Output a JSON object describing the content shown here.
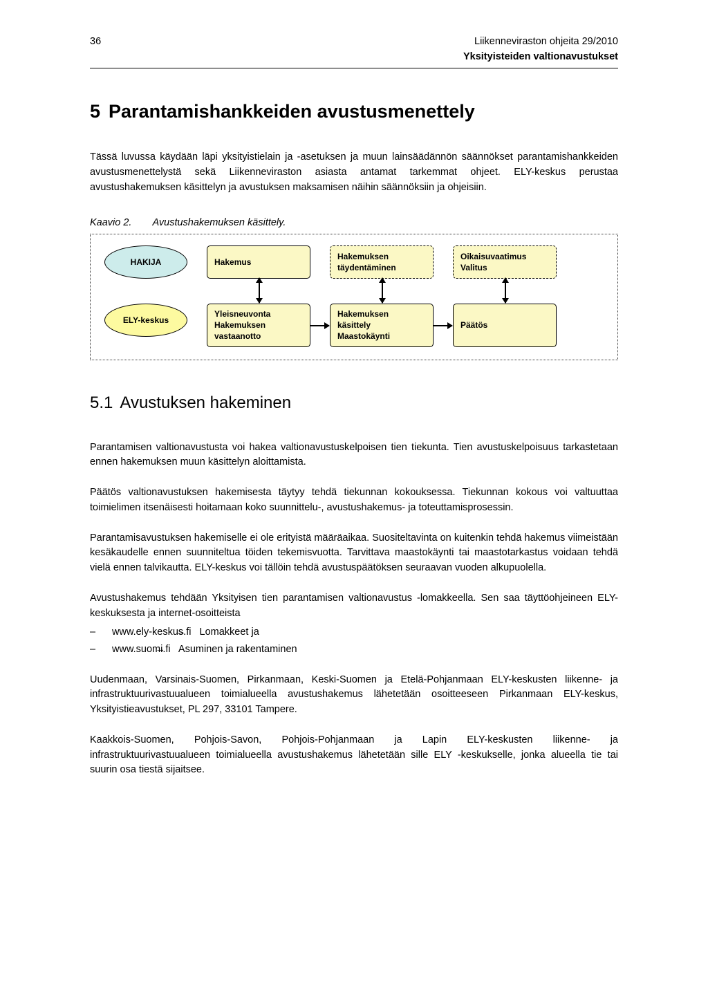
{
  "header": {
    "page_number": "36",
    "line1": "Liikenneviraston ohjeita 29/2010",
    "line2": "Yksityisteiden valtionavustukset"
  },
  "chapter": {
    "number": "5",
    "title": "Parantamishankkeiden avustusmenettely"
  },
  "intro_paragraph": "Tässä luvussa käydään läpi yksityistielain ja -asetuksen ja muun lainsäädännön säännökset parantamishankkeiden avustusmenettelystä sekä Liikenneviraston asiasta antamat tarkemmat ohjeet. ELY-keskus perustaa avustushakemuksen käsittelyn ja avustuksen maksamisen näihin säännöksiin ja ohjeisiin.",
  "diagram_caption": {
    "label": "Kaavio 2.",
    "text": "Avustushakemuksen käsittely."
  },
  "diagram": {
    "colors": {
      "ellipse_blue": "#cdeceb",
      "ellipse_yellow": "#fdfaa0",
      "rect_fill": "#fbf8c5",
      "border": "#000000",
      "container_border": "#333333"
    },
    "row1": {
      "actor": "HAKIJA",
      "box1": "Hakemus",
      "box2_line1": "Hakemuksen",
      "box2_line2": "täydentäminen",
      "box3_line1": "Oikaisuvaatimus",
      "box3_line2": "Valitus"
    },
    "row2": {
      "actor": "ELY-keskus",
      "box1_line1": "Yleisneuvonta",
      "box1_line2": "Hakemuksen",
      "box1_line3": "vastaanotto",
      "box2_line1": "Hakemuksen",
      "box2_line2": "käsittely",
      "box2_line3": "Maastokäynti",
      "box3": "Päätös"
    }
  },
  "section": {
    "number": "5.1",
    "title": "Avustuksen hakeminen"
  },
  "paragraphs": {
    "p1": "Parantamisen valtionavustusta voi hakea valtionavustuskelpoisen tien tiekunta. Tien avustuskelpoisuus tarkastetaan ennen hakemuksen muun käsittelyn aloittamista.",
    "p2": "Päätös valtionavustuksen hakemisesta täytyy tehdä tiekunnan kokouksessa. Tiekunnan kokous voi valtuuttaa toimielimen itsenäisesti hoitamaan koko suunnittelu-, avustushakemus- ja toteuttamisprosessin.",
    "p3": "Parantamisavustuksen hakemiselle ei ole erityistä määräaikaa. Suositeltavinta on kuitenkin tehdä hakemus viimeistään kesäkaudelle ennen suunniteltua töiden tekemisvuotta. Tarvittava maastokäynti tai maastotarkastus voidaan tehdä vielä ennen talvikautta. ELY-keskus voi tällöin tehdä avustuspäätöksen seuraavan vuoden alkupuolella.",
    "p4": "Avustushakemus tehdään Yksityisen tien parantamisen valtionavustus -lomakkeella. Sen saa täyttöohjeineen ELY-keskuksesta ja internet-osoitteista",
    "p5": "Uudenmaan, Varsinais-Suomen, Pirkanmaan, Keski-Suomen ja Etelä-Pohjanmaan ELY-keskusten liikenne- ja infrastruktuurivastuualueen toimialueella avustushakemus lähetetään osoitteeseen Pirkanmaan ELY-keskus, Yksityistieavustukset, PL 297, 33101 Tampere.",
    "p6": "Kaakkois-Suomen, Pohjois-Savon, Pohjois-Pohjanmaan ja Lapin ELY-keskusten liikenne- ja infrastruktuurivastuualueen toimialueella avustushakemus lähetetään sille ELY -keskukselle, jonka alueella tie tai suurin osa tiestä sijaitsee."
  },
  "links": {
    "li1_url": "www.ely-keskus.fi",
    "li1_rest": "Lomakkeet ja",
    "li2_url": "www.suomi.fi",
    "li2_rest": "Asuminen ja rakentaminen"
  }
}
